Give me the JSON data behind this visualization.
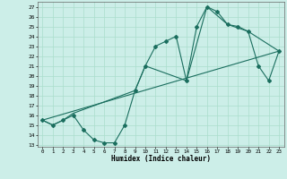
{
  "xlabel": "Humidex (Indice chaleur)",
  "bg_color": "#cceee8",
  "grid_color": "#aaddcc",
  "line_color": "#1a6e5e",
  "xlim": [
    -0.5,
    23.5
  ],
  "ylim": [
    12.8,
    27.5
  ],
  "yticks": [
    13,
    14,
    15,
    16,
    17,
    18,
    19,
    20,
    21,
    22,
    23,
    24,
    25,
    26,
    27
  ],
  "xticks": [
    0,
    1,
    2,
    3,
    4,
    5,
    6,
    7,
    8,
    9,
    10,
    11,
    12,
    13,
    14,
    15,
    16,
    17,
    18,
    19,
    20,
    21,
    22,
    23
  ],
  "line1_x": [
    0,
    1,
    2,
    3,
    4,
    5,
    6,
    7,
    8,
    9,
    10,
    11,
    12,
    13,
    14,
    15,
    16,
    17,
    18,
    19,
    20,
    21,
    22,
    23
  ],
  "line1_y": [
    15.5,
    15.0,
    15.5,
    16.0,
    14.5,
    13.5,
    13.2,
    13.2,
    15.0,
    18.5,
    21.0,
    23.0,
    23.5,
    24.0,
    19.5,
    25.0,
    27.0,
    26.5,
    25.2,
    25.0,
    24.5,
    21.0,
    19.5,
    22.5
  ],
  "line2_x": [
    0,
    1,
    2,
    3,
    9,
    10,
    14,
    16,
    18,
    20,
    23
  ],
  "line2_y": [
    15.5,
    15.0,
    15.5,
    16.2,
    18.5,
    21.0,
    19.5,
    27.0,
    25.2,
    24.5,
    22.5
  ],
  "line3_x": [
    0,
    23
  ],
  "line3_y": [
    15.5,
    22.5
  ]
}
